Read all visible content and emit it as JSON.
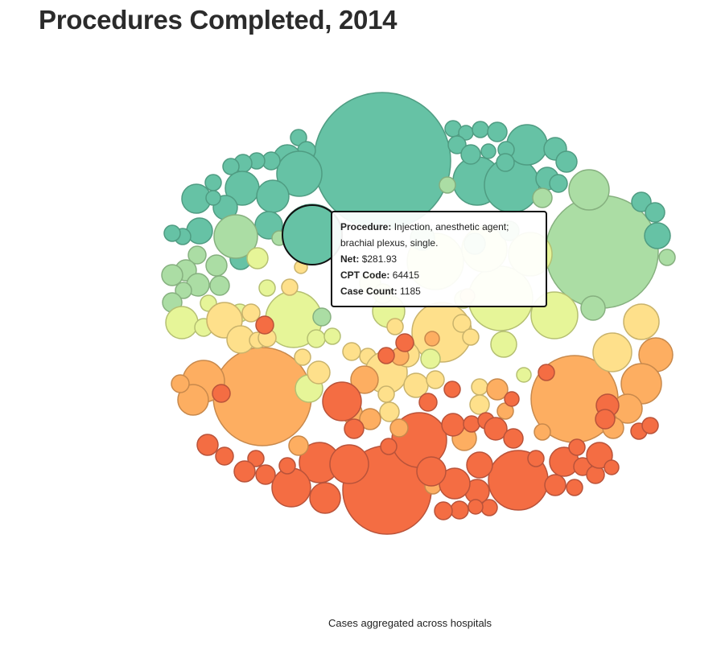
{
  "page": {
    "title": "Procedures Completed, 2014",
    "caption": "Cases aggregated across hospitals"
  },
  "tooltip": {
    "procedure_label": "Procedure:",
    "procedure_value": "Injection, anesthetic agent; brachial plexus, single.",
    "net_label": "Net:",
    "net_value": "$281.93",
    "cpt_label": "CPT Code:",
    "cpt_value": "64415",
    "count_label": "Case Count:",
    "count_value": "1185"
  },
  "chart_data": {
    "type": "bubble",
    "title": "Procedures Completed, 2014",
    "caption": "Cases aggregated across hospitals",
    "colors": [
      "#66c2a5",
      "#abdda4",
      "#e6f598",
      "#fee08b",
      "#fdae61",
      "#f46d43"
    ],
    "highlighted": {
      "procedure": "Injection, anesthetic agent; brachial plexus, single.",
      "net": "$281.93",
      "cpt_code": "64415",
      "case_count": 1185
    }
  }
}
